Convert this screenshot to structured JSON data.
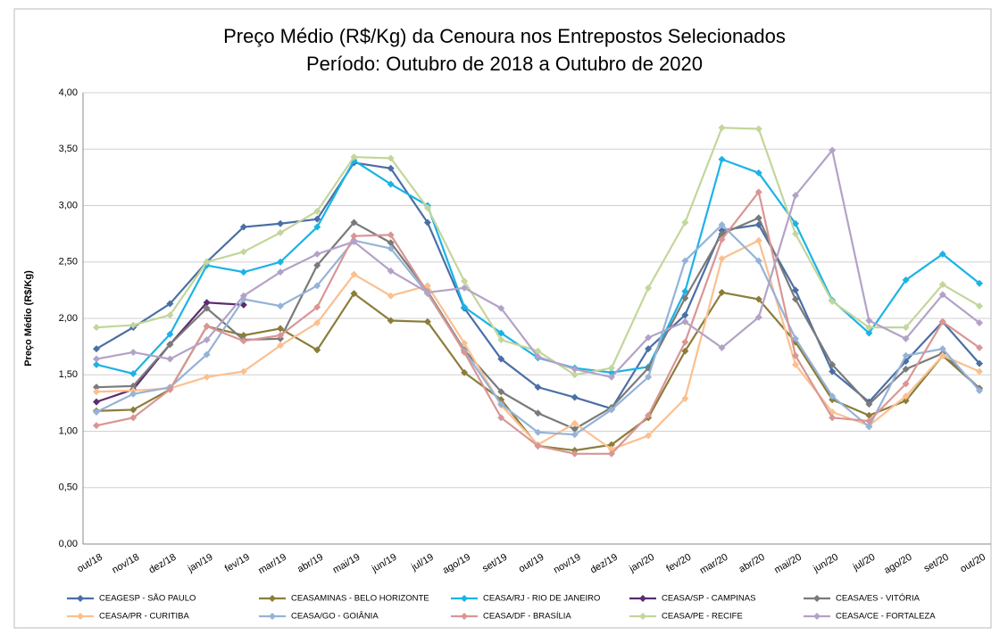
{
  "chart_data": {
    "type": "line",
    "title": "Preço Médio (R$/Kg) da Cenoura nos Entrepostos Selecionados",
    "subtitle": "Período: Outubro de 2018 a Outubro de 2020",
    "y_label": "Preço Médio (R$/Kg)",
    "categories": [
      "out/18",
      "nov/18",
      "dez/18",
      "jan/19",
      "fev/19",
      "mar/19",
      "abr/19",
      "mai/19",
      "jun/19",
      "jul/19",
      "ago/19",
      "set/19",
      "out/19",
      "nov/19",
      "dez/19",
      "jan/20",
      "fev/20",
      "mar/20",
      "abr/20",
      "mai/20",
      "jun/20",
      "jul/20",
      "ago/20",
      "set/20",
      "out/20"
    ],
    "ylim": [
      0,
      4
    ],
    "yticks": [
      {
        "value": 0,
        "label": "0,00"
      },
      {
        "value": 0.5,
        "label": "0,50"
      },
      {
        "value": 1,
        "label": "1,00"
      },
      {
        "value": 1.5,
        "label": "1,50"
      },
      {
        "value": 2,
        "label": "2,00"
      },
      {
        "value": 2.5,
        "label": "2,50"
      },
      {
        "value": 3,
        "label": "3,00"
      },
      {
        "value": 3.5,
        "label": "3,50"
      },
      {
        "value": 4,
        "label": "4,00"
      }
    ],
    "grid": true,
    "legend": "bottom",
    "series": [
      {
        "name": "CEAGESP - SÃO PAULO",
        "color": "#4a6fa5",
        "values": [
          1.73,
          1.92,
          2.13,
          2.5,
          2.81,
          2.84,
          2.88,
          3.38,
          3.33,
          2.85,
          2.09,
          1.64,
          1.39,
          1.3,
          1.2,
          1.73,
          2.03,
          2.78,
          2.83,
          2.25,
          1.53,
          1.26,
          1.62,
          1.97,
          1.6
        ]
      },
      {
        "name": "CEASAMINAS - BELO HORIZONTE",
        "color": "#8b7d3a",
        "values": [
          1.18,
          1.19,
          1.37,
          1.93,
          1.85,
          1.91,
          1.72,
          2.22,
          1.98,
          1.97,
          1.52,
          1.28,
          0.87,
          0.83,
          0.88,
          1.12,
          1.71,
          2.23,
          2.17,
          1.79,
          1.28,
          1.14,
          1.27,
          1.67,
          1.38
        ]
      },
      {
        "name": "CEASA/RJ - RIO DE JANEIRO",
        "color": "#1ab3e6",
        "values": [
          1.59,
          1.51,
          1.86,
          2.47,
          2.41,
          2.5,
          2.81,
          3.4,
          3.19,
          3.0,
          2.1,
          1.87,
          1.65,
          1.56,
          1.52,
          1.57,
          2.24,
          3.41,
          3.29,
          2.84,
          2.16,
          1.87,
          2.34,
          2.57,
          2.31
        ]
      },
      {
        "name": "CEASA/SP - CAMPINAS",
        "color": "#5b2c6f",
        "values": [
          1.26,
          1.37,
          1.77,
          2.14,
          2.12,
          null,
          null,
          null,
          null,
          null,
          null,
          null,
          null,
          null,
          null,
          null,
          null,
          null,
          null,
          null,
          null,
          null,
          null,
          null,
          null
        ]
      },
      {
        "name": "CEASA/ES - VITÓRIA",
        "color": "#7a7a7a",
        "values": [
          1.39,
          1.4,
          1.77,
          2.09,
          1.81,
          1.82,
          2.47,
          2.85,
          2.67,
          2.24,
          1.72,
          1.35,
          1.16,
          1.02,
          1.21,
          1.56,
          2.18,
          2.75,
          2.89,
          2.17,
          1.59,
          1.24,
          1.55,
          1.69,
          1.38
        ]
      },
      {
        "name": "CEASA/PR - CURITIBA",
        "color": "#fac090",
        "values": [
          1.35,
          1.36,
          1.38,
          1.48,
          1.53,
          1.76,
          1.96,
          2.39,
          2.2,
          2.29,
          1.78,
          1.23,
          0.88,
          1.07,
          0.84,
          0.96,
          1.29,
          2.53,
          2.69,
          1.59,
          1.17,
          1.05,
          1.31,
          1.67,
          1.53
        ]
      },
      {
        "name": "CEASA/GO - GOIÂNIA",
        "color": "#95b3d7",
        "values": [
          1.17,
          1.33,
          1.39,
          1.68,
          2.17,
          2.11,
          2.29,
          2.69,
          2.62,
          2.22,
          1.71,
          1.24,
          0.99,
          0.97,
          1.19,
          1.48,
          2.51,
          2.83,
          2.51,
          1.82,
          1.31,
          1.04,
          1.67,
          1.73,
          1.36
        ]
      },
      {
        "name": "CEASA/DF - BRASÍLIA",
        "color": "#d99694",
        "values": [
          1.05,
          1.12,
          1.37,
          1.93,
          1.8,
          1.85,
          2.1,
          2.73,
          2.74,
          2.23,
          1.7,
          1.12,
          0.87,
          0.8,
          0.8,
          1.14,
          1.79,
          2.7,
          3.12,
          1.67,
          1.12,
          1.09,
          1.42,
          1.97,
          1.74
        ]
      },
      {
        "name": "CEASA/PE - RECIFE",
        "color": "#c3d69b",
        "values": [
          1.92,
          1.94,
          2.03,
          2.5,
          2.59,
          2.76,
          2.95,
          3.43,
          3.42,
          2.98,
          2.33,
          1.81,
          1.71,
          1.5,
          1.56,
          2.27,
          2.85,
          3.69,
          3.68,
          2.75,
          2.15,
          1.92,
          1.92,
          2.3,
          2.11
        ]
      },
      {
        "name": "CEASA/CE - FORTALEZA",
        "color": "#b3a2c7",
        "values": [
          1.64,
          1.7,
          1.64,
          1.81,
          2.2,
          2.41,
          2.57,
          2.68,
          2.42,
          2.23,
          2.27,
          2.09,
          1.66,
          1.55,
          1.48,
          1.83,
          1.97,
          1.74,
          2.01,
          3.09,
          3.49,
          1.98,
          1.82,
          2.21,
          1.96
        ]
      }
    ]
  }
}
